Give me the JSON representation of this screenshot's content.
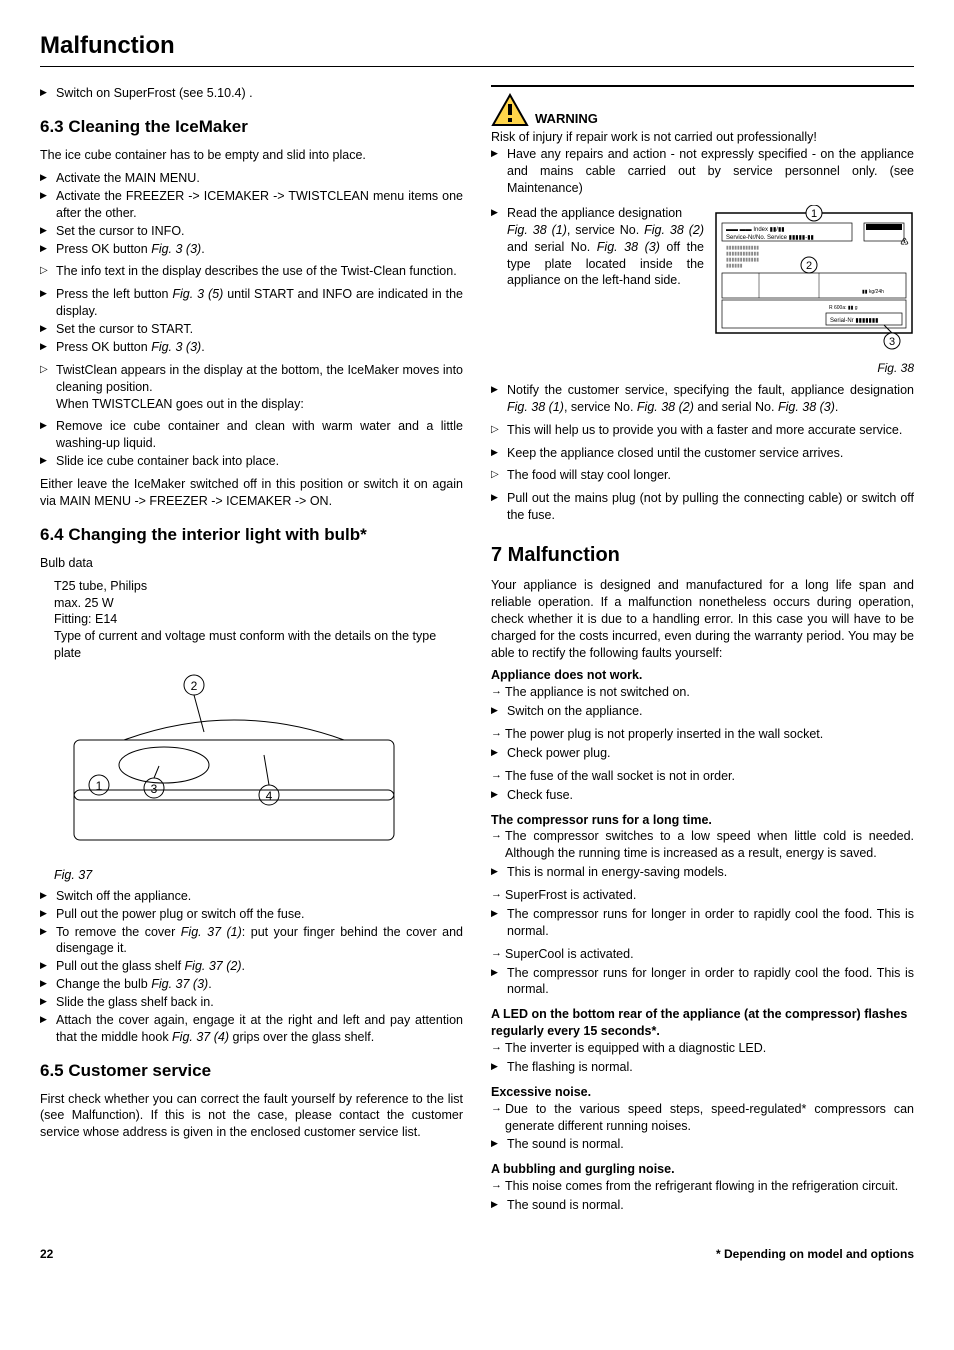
{
  "page_title": "Malfunction",
  "col_left": {
    "intro_step": "Switch on SuperFrost (see 5.10.4) .",
    "s63": {
      "heading": "6.3 Cleaning the IceMaker",
      "intro": "The ice cube container has to be empty and slid into place.",
      "steps1": [
        "Activate the MAIN MENU.",
        "Activate the FREEZER -> ICEMAKER -> TWISTCLEAN menu items one after the other.",
        "Set the cursor to INFO.",
        "Press OK button Fig. 3 (3)."
      ],
      "result1": "The info text in the display describes the use of the Twist-Clean function.",
      "steps2": [
        "Press the left button Fig. 3 (5) until START and INFO are indicated in the display.",
        "Set the cursor to START.",
        "Press OK button Fig. 3 (3)."
      ],
      "result2": "TwistClean appears in the display at the bottom, the IceMaker moves into cleaning position.",
      "result2b": "When TWISTCLEAN goes out in the display:",
      "steps3": [
        "Remove ice cube container and clean with warm water and a little washing-up liquid.",
        "Slide ice cube container back into place."
      ],
      "outro": "Either leave the IceMaker switched off in this position or switch it on again via MAIN MENU -> FREEZER -> ICEMAKER -> ON."
    },
    "s64": {
      "heading": "6.4 Changing the interior light with bulb*",
      "bulb_label": "Bulb data",
      "bulb_lines": [
        "T25 tube, Philips",
        "max. 25 W",
        "Fitting: E14",
        "Type of current and voltage must conform with the details on the type plate"
      ],
      "fig_caption": "Fig. 37",
      "steps": [
        "Switch off the appliance.",
        "Pull out the power plug or switch off the fuse.",
        "To remove the cover Fig. 37 (1): put your finger behind the cover and disengage it.",
        "Pull out the glass shelf Fig. 37 (2).",
        "Change the bulb Fig. 37 (3).",
        "Slide the glass shelf back in.",
        "Attach the cover again, engage it at the right and left and pay attention that the middle hook Fig. 37 (4) grips over the glass shelf."
      ]
    },
    "s65": {
      "heading": "6.5 Customer service",
      "text": "First check whether you can correct the fault yourself by reference to the list (see Malfunction). If this is not the case, please contact the customer service whose address is given in the enclosed customer service list."
    }
  },
  "col_right": {
    "warning_label": "WARNING",
    "warning_text": "Risk of injury if repair work is not carried out professionally!",
    "warning_step": "Have any repairs and action - not expressly specified - on the appliance and mains cable carried out by service personnel only. (see Maintenance)",
    "read_step_label": "Read the appliance designation",
    "read_step_body": "Fig. 38 (1), service No. Fig. 38 (2) and serial No. Fig. 38 (3) off the type plate located inside the appliance on the left-hand side.",
    "fig38_caption": "Fig. 38",
    "notify_step": "Notify the customer service, specifying the fault, appliance designation Fig. 38 (1), service No. Fig. 38 (2) and serial No. Fig. 38 (3).",
    "notify_result": "This will help us to provide you with a faster and more accurate service.",
    "keep_step": "Keep the appliance closed until the customer service arrives.",
    "keep_result": "The food will stay cool longer.",
    "pull_step": "Pull out the mains plug (not by pulling the connecting cable) or switch off the fuse.",
    "s7": {
      "heading": "7 Malfunction",
      "intro": "Your appliance is designed and manufactured for a long life span and reliable operation. If a malfunction nonetheless occurs during operation, check whether it is due to a handling error. In this case you will have to be charged for the costs incurred, even during the warranty period. You may be able to rectify the following faults yourself:",
      "blocks": [
        {
          "title": "Appliance does not work.",
          "items": [
            {
              "type": "arrow",
              "text": "The appliance is not switched on."
            },
            {
              "type": "step",
              "text": "Switch on the appliance."
            },
            {
              "type": "arrow",
              "text": "The power plug is not properly inserted in the wall socket."
            },
            {
              "type": "step",
              "text": "Check power plug."
            },
            {
              "type": "arrow",
              "text": "The fuse of the wall socket is not in order."
            },
            {
              "type": "step",
              "text": "Check fuse."
            }
          ]
        },
        {
          "title": "The compressor runs for a long time.",
          "items": [
            {
              "type": "arrow",
              "text": "The compressor switches to a low speed when little cold is needed. Although the running time is increased as a result, energy is saved."
            },
            {
              "type": "step",
              "text": "This is normal in energy-saving models."
            },
            {
              "type": "arrow",
              "text": "SuperFrost is activated."
            },
            {
              "type": "step",
              "text": "The compressor runs for longer in order to rapidly cool the food. This is normal."
            },
            {
              "type": "arrow",
              "text": "SuperCool is activated."
            },
            {
              "type": "step",
              "text": "The compressor runs for longer in order to rapidly cool the food. This is normal."
            }
          ]
        },
        {
          "title": "A LED on the bottom rear of the appliance (at the compressor) flashes regularly every 15 seconds*.",
          "items": [
            {
              "type": "arrow",
              "text": "The inverter is equipped with a diagnostic LED."
            },
            {
              "type": "step",
              "text": "The flashing is normal."
            }
          ]
        },
        {
          "title": "Excessive noise.",
          "items": [
            {
              "type": "arrow",
              "text": "Due to the various speed steps, speed-regulated* compressors can generate different running noises."
            },
            {
              "type": "step",
              "text": "The sound is normal."
            }
          ]
        },
        {
          "title": "A bubbling and gurgling noise.",
          "items": [
            {
              "type": "arrow",
              "text": "This noise comes from the refrigerant flowing in the refrigeration circuit."
            },
            {
              "type": "step",
              "text": "The sound is normal."
            }
          ]
        }
      ]
    }
  },
  "footer": {
    "page": "22",
    "note": "* Depending on model and options"
  }
}
